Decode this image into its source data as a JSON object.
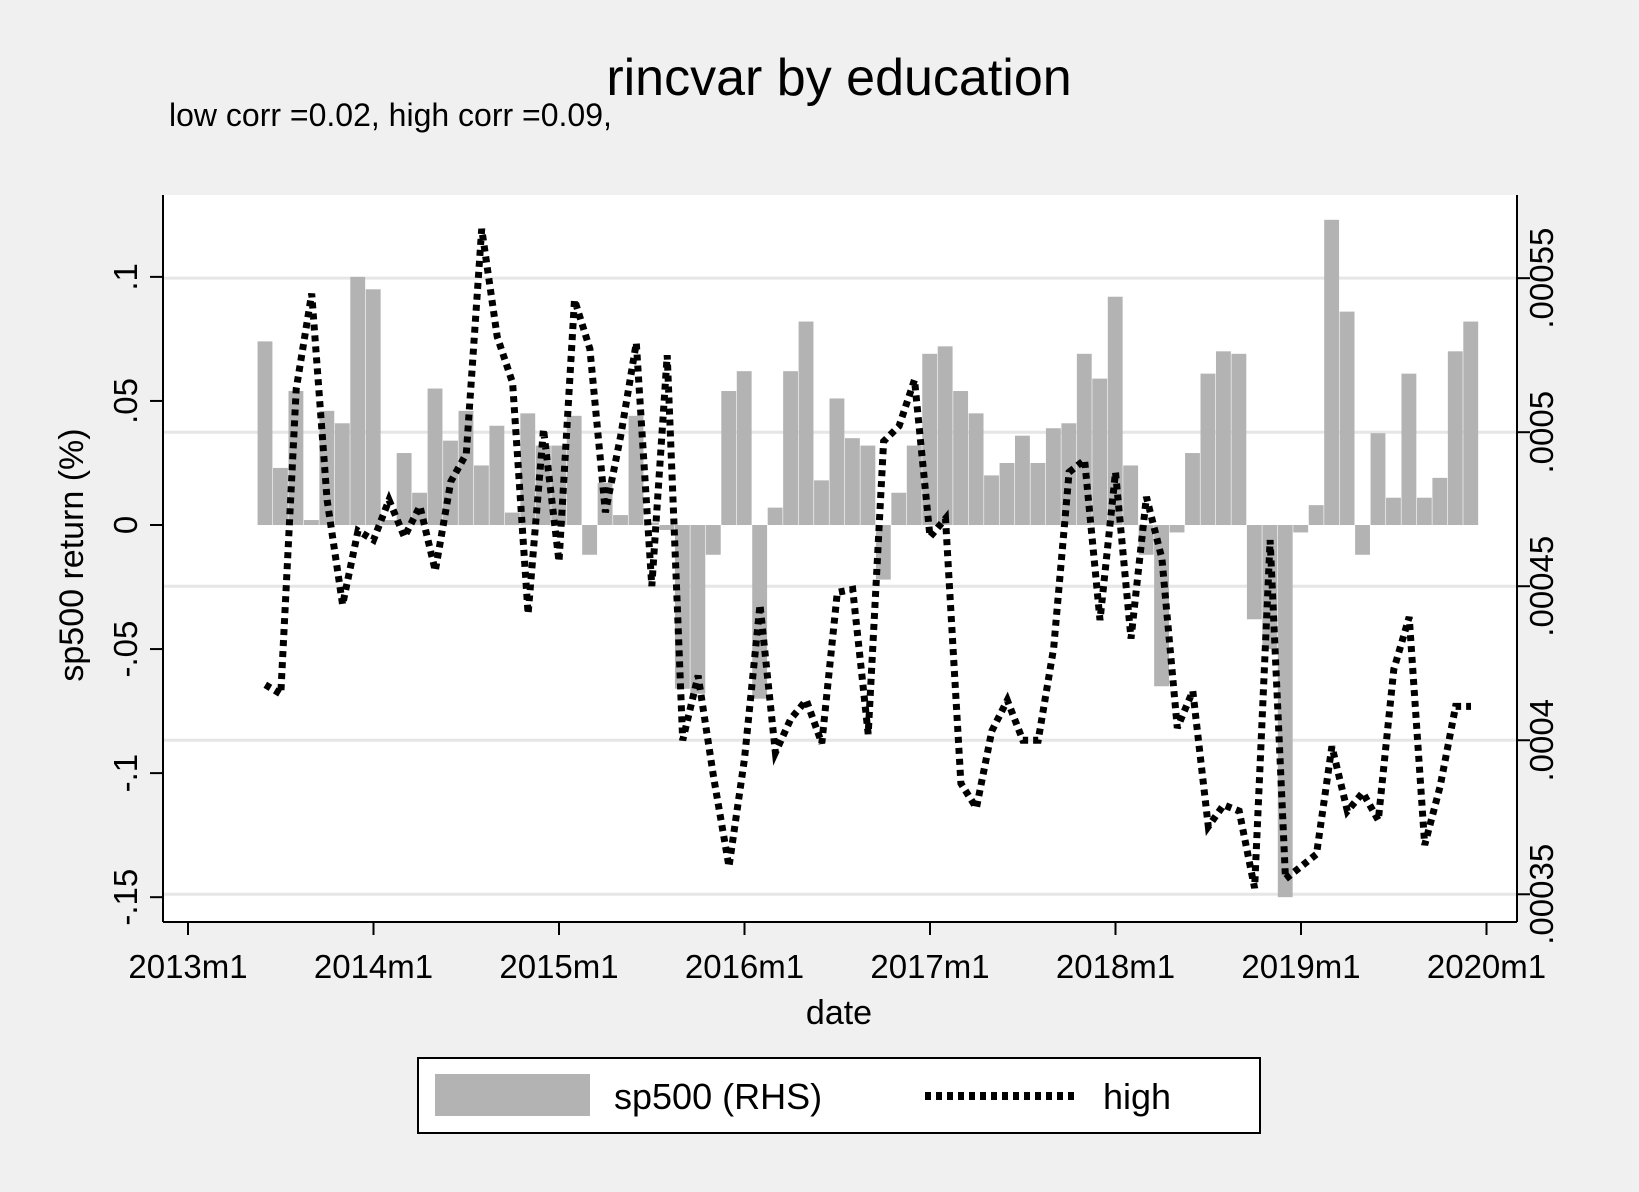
{
  "chart_data": {
    "type": "bar",
    "title": "rincvar by education",
    "subtitle": "low corr =0.02, high corr =0.09,",
    "xlabel": "date",
    "ylabel_left": "sp500 return (%)",
    "ylabel_right": "",
    "x_ticks": [
      "2013m1",
      "2014m1",
      "2015m1",
      "2016m1",
      "2017m1",
      "2018m1",
      "2019m1",
      "2020m1"
    ],
    "x_range": [
      "2013m1",
      "2020m1"
    ],
    "y_left_ticks": [
      "-.15",
      "-.1",
      "-.05",
      "0",
      ".05",
      ".1"
    ],
    "y_left_range": [
      -0.16,
      0.133
    ],
    "y_right_ticks": [
      ".00035",
      ".0004",
      ".00045",
      ".0005",
      ".00055"
    ],
    "y_right_range": [
      0.000341,
      0.000577
    ],
    "grid": true,
    "legend_position": "bottom",
    "colors": {
      "bars": "#b3b3b3",
      "line": "#000000",
      "grid": "#e6e6e6",
      "background": "#ffffff",
      "outer": "#f0f0f0"
    },
    "series": [
      {
        "name": "sp500 (RHS)",
        "type": "bar",
        "axis": "left",
        "x": [
          "2013m6",
          "2013m7",
          "2013m8",
          "2013m9",
          "2013m10",
          "2013m11",
          "2013m12",
          "2014m1",
          "2014m2",
          "2014m3",
          "2014m4",
          "2014m5",
          "2014m6",
          "2014m7",
          "2014m8",
          "2014m9",
          "2014m10",
          "2014m11",
          "2014m12",
          "2015m1",
          "2015m2",
          "2015m3",
          "2015m4",
          "2015m5",
          "2015m6",
          "2015m7",
          "2015m8",
          "2015m9",
          "2015m10",
          "2015m11",
          "2015m12",
          "2016m1",
          "2016m2",
          "2016m3",
          "2016m4",
          "2016m5",
          "2016m6",
          "2016m7",
          "2016m8",
          "2016m9",
          "2016m10",
          "2016m11",
          "2016m12",
          "2017m1",
          "2017m2",
          "2017m3",
          "2017m4",
          "2017m5",
          "2017m6",
          "2017m7",
          "2017m8",
          "2017m9",
          "2017m10",
          "2017m11",
          "2017m12",
          "2018m1",
          "2018m2",
          "2018m3",
          "2018m4",
          "2018m5",
          "2018m6",
          "2018m7",
          "2018m8",
          "2018m9",
          "2018m10",
          "2018m11",
          "2018m12",
          "2019m1",
          "2019m2",
          "2019m3",
          "2019m4",
          "2019m5",
          "2019m6",
          "2019m7",
          "2019m8",
          "2019m9",
          "2019m10",
          "2019m11",
          "2019m12"
        ],
        "values": [
          0.074,
          0.023,
          0.054,
          0.002,
          0.046,
          0.041,
          0.1,
          0.095,
          0.002,
          0.029,
          0.013,
          0.055,
          0.034,
          0.046,
          0.024,
          0.04,
          0.005,
          0.045,
          0.032,
          0.032,
          0.044,
          -0.012,
          0.017,
          0.004,
          0.044,
          0.001,
          -0.002,
          -0.066,
          -0.068,
          -0.012,
          0.054,
          0.062,
          -0.07,
          0.007,
          0.062,
          0.082,
          0.018,
          0.051,
          0.035,
          0.032,
          -0.022,
          0.013,
          0.032,
          0.069,
          0.072,
          0.054,
          0.045,
          0.02,
          0.025,
          0.036,
          0.025,
          0.039,
          0.041,
          0.069,
          0.059,
          0.092,
          0.024,
          -0.012,
          -0.065,
          -0.003,
          0.029,
          0.061,
          0.07,
          0.069,
          -0.038,
          -0.05,
          -0.15,
          -0.003,
          0.008,
          0.123,
          0.086,
          -0.012,
          0.037,
          0.011,
          0.061,
          0.011,
          0.019,
          0.07,
          0.082
        ]
      },
      {
        "name": "high",
        "type": "line",
        "style": "dotted",
        "axis": "right",
        "x": [
          "2013m6",
          "2013m7",
          "2013m8",
          "2013m9",
          "2013m10",
          "2013m11",
          "2013m12",
          "2014m1",
          "2014m2",
          "2014m3",
          "2014m4",
          "2014m5",
          "2014m6",
          "2014m7",
          "2014m8",
          "2014m9",
          "2014m10",
          "2014m11",
          "2014m12",
          "2015m1",
          "2015m2",
          "2015m3",
          "2015m4",
          "2015m5",
          "2015m6",
          "2015m7",
          "2015m8",
          "2015m9",
          "2015m10",
          "2015m11",
          "2015m12",
          "2016m1",
          "2016m2",
          "2016m3",
          "2016m4",
          "2016m5",
          "2016m6",
          "2016m7",
          "2016m8",
          "2016m9",
          "2016m10",
          "2016m11",
          "2016m12",
          "2017m1",
          "2017m2",
          "2017m3",
          "2017m4",
          "2017m5",
          "2017m6",
          "2017m7",
          "2017m8",
          "2017m9",
          "2017m10",
          "2017m11",
          "2017m12",
          "2018m1",
          "2018m2",
          "2018m3",
          "2018m4",
          "2018m5",
          "2018m6",
          "2018m7",
          "2018m8",
          "2018m9",
          "2018m10",
          "2018m11",
          "2018m12",
          "2019m1",
          "2019m2",
          "2019m3",
          "2019m4",
          "2019m5",
          "2019m6",
          "2019m7",
          "2019m8",
          "2019m9",
          "2019m10",
          "2019m11",
          "2019m12"
        ],
        "values": [
          0.000418,
          0.000415,
          0.000514,
          0.000545,
          0.000478,
          0.000444,
          0.000468,
          0.000465,
          0.000478,
          0.000466,
          0.000476,
          0.000455,
          0.000484,
          0.000493,
          0.000566,
          0.000531,
          0.000516,
          0.000441,
          0.000501,
          0.000458,
          0.000543,
          0.000527,
          0.000474,
          0.000499,
          0.000529,
          0.00045,
          0.000525,
          0.0004,
          0.000421,
          0.000388,
          0.000359,
          0.000394,
          0.000444,
          0.000396,
          0.000407,
          0.000413,
          0.000399,
          0.000448,
          0.000449,
          0.000402,
          0.000497,
          0.000502,
          0.000517,
          0.000466,
          0.000472,
          0.000386,
          0.000378,
          0.000403,
          0.000413,
          0.0004,
          0.0004,
          0.00043,
          0.000487,
          0.000491,
          0.000439,
          0.000487,
          0.000433,
          0.000479,
          0.000459,
          0.000404,
          0.000416,
          0.000372,
          0.000379,
          0.000377,
          0.000352,
          0.000465,
          0.000355,
          0.000359,
          0.000363,
          0.000398,
          0.000377,
          0.000383,
          0.000374,
          0.000423,
          0.00044,
          0.000366,
          0.000385,
          0.000411,
          0.000411
        ]
      }
    ]
  }
}
